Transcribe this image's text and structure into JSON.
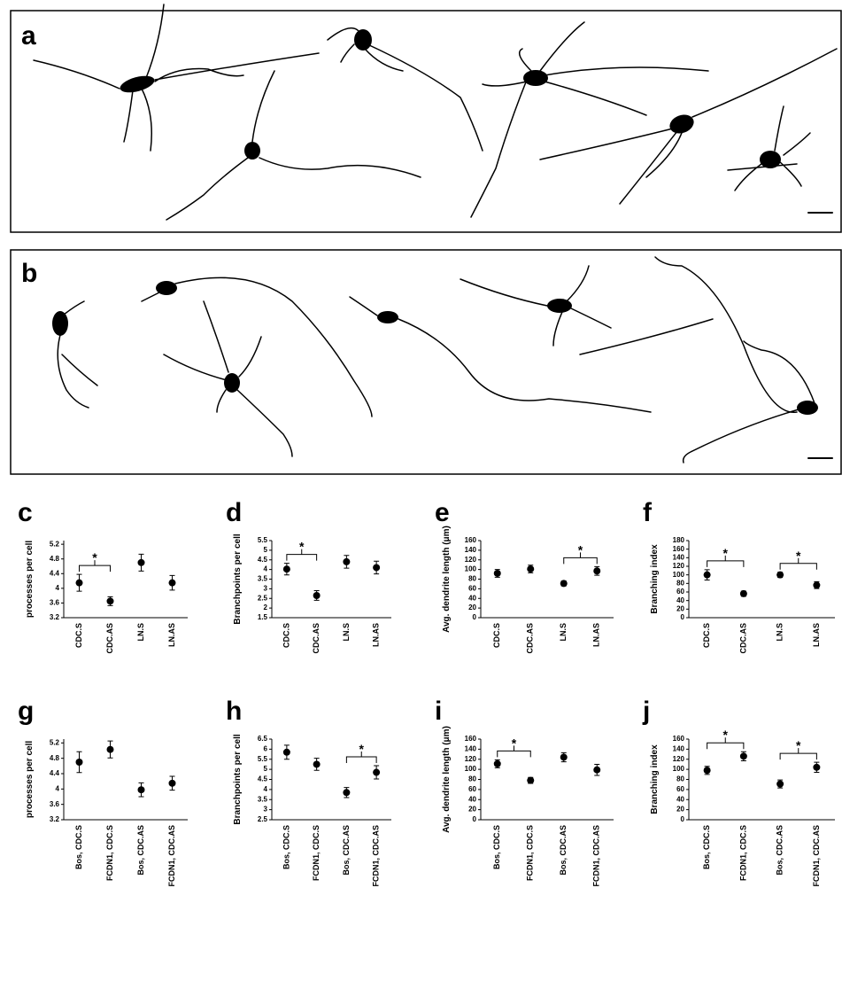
{
  "figures": [
    {
      "label": "a"
    },
    {
      "label": "b"
    }
  ],
  "chart_data": [
    {
      "type": "errorbar",
      "label": "c",
      "ylabel": "processes per cell",
      "categories": [
        "CDC.S",
        "CDC.AS",
        "LN.S",
        "LN.AS"
      ],
      "values": [
        4.15,
        3.65,
        4.7,
        4.15
      ],
      "errors": [
        0.23,
        0.12,
        0.23,
        0.2
      ],
      "ylim": [
        3.2,
        5.3
      ],
      "yticks": [
        3.2,
        3.6,
        4,
        4.4,
        4.8,
        5.2
      ],
      "significance": [
        {
          "categories": [
            "CDC.S",
            "CDC.AS"
          ],
          "label": "*"
        }
      ]
    },
    {
      "type": "errorbar",
      "label": "d",
      "ylabel": "Branchpoints per cell",
      "categories": [
        "CDC.S",
        "CDC.AS",
        "LN.S",
        "LN.AS"
      ],
      "values": [
        4.02,
        2.65,
        4.4,
        4.1
      ],
      "errors": [
        0.3,
        0.25,
        0.33,
        0.33
      ],
      "ylim": [
        1.5,
        5.5
      ],
      "yticks": [
        1.5,
        2,
        2.5,
        3,
        3.5,
        4,
        4.5,
        5,
        5.5
      ],
      "significance": [
        {
          "categories": [
            "CDC.S",
            "CDC.AS"
          ],
          "label": "*"
        }
      ]
    },
    {
      "type": "errorbar",
      "label": "e",
      "ylabel": "Avg. dendrite length (μm)",
      "categories": [
        "CDC.S",
        "CDC.AS",
        "LN.S",
        "LN.AS"
      ],
      "values": [
        92,
        101,
        71,
        97
      ],
      "errors": [
        8,
        8,
        5,
        9
      ],
      "ylim": [
        0,
        160
      ],
      "yticks": [
        0,
        20,
        40,
        60,
        80,
        100,
        120,
        140,
        160
      ],
      "significance": [
        {
          "categories": [
            "LN.S",
            "LN.AS"
          ],
          "label": "*"
        }
      ]
    },
    {
      "type": "errorbar",
      "label": "f",
      "ylabel": "Branching index",
      "categories": [
        "CDC.S",
        "CDC.AS",
        "LN.S",
        "LN.AS"
      ],
      "values": [
        100,
        56,
        100,
        76
      ],
      "errors": [
        12,
        6,
        6,
        8
      ],
      "ylim": [
        0,
        180
      ],
      "yticks": [
        0,
        20,
        40,
        60,
        80,
        100,
        120,
        140,
        160,
        180
      ],
      "significance": [
        {
          "categories": [
            "CDC.S",
            "CDC.AS"
          ],
          "label": "*"
        },
        {
          "categories": [
            "LN.S",
            "LN.AS"
          ],
          "label": "*"
        }
      ]
    },
    {
      "type": "errorbar",
      "label": "g",
      "ylabel": "processes per cell",
      "categories": [
        "Bos, CDC.S",
        "FCDN1, CDC.S",
        "Bos, CDC.AS",
        "FCDN1, CDC.AS"
      ],
      "values": [
        4.7,
        5.03,
        3.98,
        4.15
      ],
      "errors": [
        0.27,
        0.22,
        0.18,
        0.18
      ],
      "ylim": [
        3.2,
        5.3
      ],
      "yticks": [
        3.2,
        3.6,
        4,
        4.4,
        4.8,
        5.2
      ],
      "significance": []
    },
    {
      "type": "errorbar",
      "label": "h",
      "ylabel": "Branchpoints per cell",
      "categories": [
        "Bos, CDC.S",
        "FCDN1, CDC.S",
        "Bos, CDC.AS",
        "FCDN1, CDC.AS"
      ],
      "values": [
        5.85,
        5.25,
        3.85,
        4.85
      ],
      "errors": [
        0.35,
        0.3,
        0.25,
        0.33
      ],
      "ylim": [
        2.5,
        6.5
      ],
      "yticks": [
        2.5,
        3,
        3.5,
        4,
        4.5,
        5,
        5.5,
        6,
        6.5
      ],
      "significance": [
        {
          "categories": [
            "Bos, CDC.AS",
            "FCDN1, CDC.AS"
          ],
          "label": "*"
        }
      ]
    },
    {
      "type": "errorbar",
      "label": "i",
      "ylabel": "Avg. dendrite length (μm)",
      "categories": [
        "Bos, CDC.S",
        "FCDN1, CDC.S",
        "Bos, CDC.AS",
        "FCDN1, CDC.AS"
      ],
      "values": [
        111,
        78,
        124,
        99
      ],
      "errors": [
        8,
        6,
        9,
        11
      ],
      "ylim": [
        0,
        160
      ],
      "yticks": [
        0,
        20,
        40,
        60,
        80,
        100,
        120,
        140,
        160
      ],
      "significance": [
        {
          "categories": [
            "Bos, CDC.S",
            "FCDN1, CDC.S"
          ],
          "label": "*"
        }
      ]
    },
    {
      "type": "errorbar",
      "label": "j",
      "ylabel": "Branching index",
      "categories": [
        "Bos, CDC.S",
        "FCDN1, CDC.S",
        "Bos, CDC.AS",
        "FCDN1, CDC.AS"
      ],
      "values": [
        98,
        126,
        71,
        104
      ],
      "errors": [
        8,
        9,
        8,
        10
      ],
      "ylim": [
        0,
        160
      ],
      "yticks": [
        0,
        20,
        40,
        60,
        80,
        100,
        120,
        140,
        160
      ],
      "significance": [
        {
          "categories": [
            "Bos, CDC.S",
            "FCDN1, CDC.S"
          ],
          "label": "*"
        },
        {
          "categories": [
            "Bos, CDC.AS",
            "FCDN1, CDC.AS"
          ],
          "label": "*"
        }
      ]
    }
  ]
}
